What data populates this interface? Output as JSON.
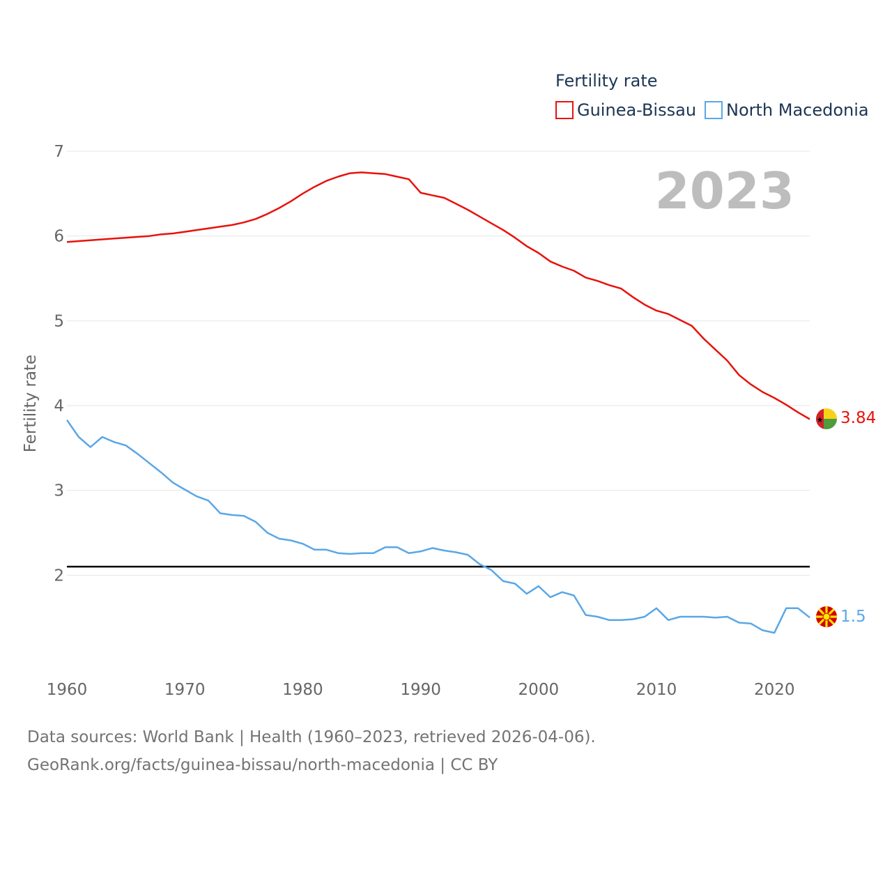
{
  "chart_data": {
    "type": "line",
    "legend_title": "Fertility rate",
    "ylabel": "Fertility rate",
    "year_label": "2023",
    "x": [
      1960,
      1961,
      1962,
      1963,
      1964,
      1965,
      1966,
      1967,
      1968,
      1969,
      1970,
      1971,
      1972,
      1973,
      1974,
      1975,
      1976,
      1977,
      1978,
      1979,
      1980,
      1981,
      1982,
      1983,
      1984,
      1985,
      1986,
      1987,
      1988,
      1989,
      1990,
      1991,
      1992,
      1993,
      1994,
      1995,
      1996,
      1997,
      1998,
      1999,
      2000,
      2001,
      2002,
      2003,
      2004,
      2005,
      2006,
      2007,
      2008,
      2009,
      2010,
      2011,
      2012,
      2013,
      2014,
      2015,
      2016,
      2017,
      2018,
      2019,
      2020,
      2021,
      2022,
      2023
    ],
    "xlim": [
      1960,
      2023
    ],
    "xticks": [
      "1960",
      "1970",
      "1980",
      "1990",
      "2000",
      "2010",
      "2020"
    ],
    "ylim": [
      1.0,
      7.0
    ],
    "yticks": [
      "2",
      "3",
      "4",
      "5",
      "6",
      "7"
    ],
    "reference_line": 2.1,
    "series": [
      {
        "name": "Guinea-Bissau",
        "color": "#e8120c",
        "end_label": "3.84",
        "flag": "guinea-bissau-flag-icon",
        "values": [
          5.93,
          5.94,
          5.95,
          5.96,
          5.97,
          5.98,
          5.99,
          6.0,
          6.02,
          6.03,
          6.05,
          6.07,
          6.09,
          6.11,
          6.13,
          6.16,
          6.2,
          6.26,
          6.33,
          6.41,
          6.5,
          6.58,
          6.65,
          6.7,
          6.74,
          6.75,
          6.74,
          6.73,
          6.7,
          6.67,
          6.51,
          6.48,
          6.45,
          6.38,
          6.31,
          6.23,
          6.15,
          6.07,
          5.98,
          5.88,
          5.8,
          5.7,
          5.64,
          5.59,
          5.51,
          5.47,
          5.42,
          5.38,
          5.28,
          5.19,
          5.12,
          5.08,
          5.01,
          4.94,
          4.79,
          4.66,
          4.53,
          4.36,
          4.25,
          4.16,
          4.09,
          4.01,
          3.92,
          3.84
        ]
      },
      {
        "name": "North Macedonia",
        "color": "#5aa7e6",
        "end_label": "1.5",
        "flag": "north-macedonia-flag-icon",
        "values": [
          3.83,
          3.63,
          3.51,
          3.63,
          3.57,
          3.53,
          3.43,
          3.32,
          3.21,
          3.09,
          3.01,
          2.93,
          2.88,
          2.73,
          2.71,
          2.7,
          2.63,
          2.5,
          2.43,
          2.41,
          2.37,
          2.3,
          2.3,
          2.26,
          2.25,
          2.26,
          2.26,
          2.33,
          2.33,
          2.26,
          2.28,
          2.32,
          2.29,
          2.27,
          2.24,
          2.13,
          2.06,
          1.93,
          1.9,
          1.78,
          1.87,
          1.74,
          1.8,
          1.76,
          1.53,
          1.51,
          1.47,
          1.47,
          1.48,
          1.51,
          1.61,
          1.47,
          1.51,
          1.51,
          1.51,
          1.5,
          1.51,
          1.44,
          1.43,
          1.35,
          1.32,
          1.61,
          1.61,
          1.5
        ]
      }
    ]
  },
  "footer": {
    "line1": "Data sources: World Bank | Health (1960–2023, retrieved 2026-04-06).",
    "line2": "GeoRank.org/facts/guinea-bissau/north-macedonia | CC BY"
  }
}
